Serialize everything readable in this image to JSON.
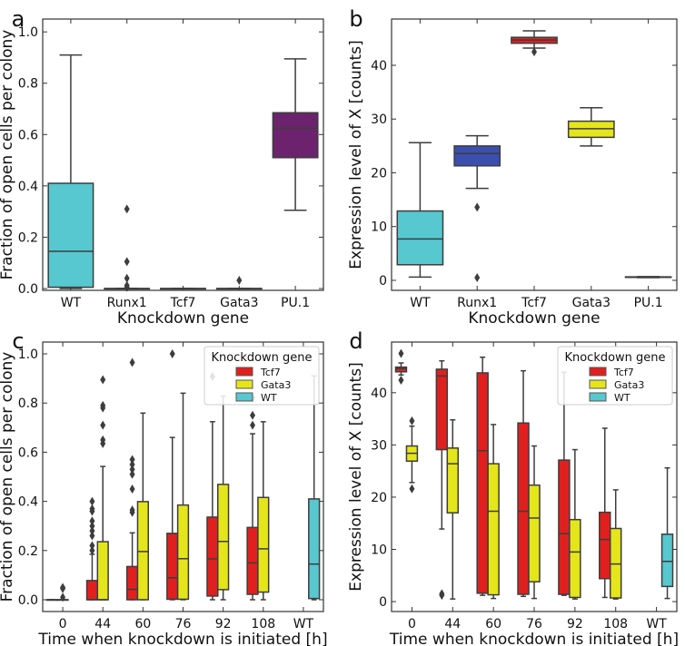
{
  "colors": {
    "line": "#3d3d3d",
    "WT": "#57c7d0",
    "Runx1": "#3a4fb0",
    "Tcf7": "#e0201f",
    "Gata3": "#e5e51c",
    "PU.1": "#6c226c"
  },
  "chart_data": [
    {
      "panel": "a",
      "type": "box",
      "xlabel": "Knockdown gene",
      "ylabel": "Fraction of open cells per colony",
      "categories": [
        "WT",
        "Runx1",
        "Tcf7",
        "Gata3",
        "PU.1"
      ],
      "ylim": [
        -0.007,
        1.05
      ],
      "yticks": [
        0.0,
        0.2,
        0.4,
        0.6,
        0.8,
        1.0
      ],
      "ytick_labels": [
        "0.0",
        "0.2",
        "0.4",
        "0.6",
        "0.8",
        "1.0"
      ],
      "hue_levels": [],
      "boxes": [
        {
          "category": "WT",
          "group": "WT",
          "whislo": 0.0,
          "q1": 0.005,
          "med": 0.145,
          "q3": 0.41,
          "whishi": 0.91,
          "fliers": []
        },
        {
          "category": "Runx1",
          "group": "Runx1",
          "whislo": 0,
          "q1": 0,
          "med": 0,
          "q3": 0,
          "whishi": 0,
          "fliers": [
            0.31,
            0.105,
            0.04,
            0.012,
            0.005
          ]
        },
        {
          "category": "Tcf7",
          "group": "Tcf7",
          "whislo": 0,
          "q1": 0,
          "med": 0,
          "q3": 0,
          "whishi": 0,
          "fliers": []
        },
        {
          "category": "Gata3",
          "group": "Gata3",
          "whislo": 0,
          "q1": 0,
          "med": 0,
          "q3": 0,
          "whishi": 0,
          "fliers": [
            0.032
          ]
        },
        {
          "category": "PU.1",
          "group": "PU.1",
          "whislo": 0.305,
          "q1": 0.51,
          "med": 0.625,
          "q3": 0.685,
          "whishi": 0.895,
          "fliers": []
        }
      ]
    },
    {
      "panel": "b",
      "type": "box",
      "xlabel": "Knockdown gene",
      "ylabel": "Expression level of X [counts]",
      "categories": [
        "WT",
        "Runx1",
        "Tcf7",
        "Gata3",
        "PU.1"
      ],
      "ylim": [
        -1.86,
        48.6
      ],
      "yticks": [
        0,
        10,
        20,
        30,
        40
      ],
      "ytick_labels": [
        "0",
        "10",
        "20",
        "30",
        "40"
      ],
      "hue_levels": [],
      "boxes": [
        {
          "category": "WT",
          "group": "WT",
          "whislo": 0.6,
          "q1": 2.9,
          "med": 7.7,
          "q3": 12.9,
          "whishi": 25.6,
          "fliers": []
        },
        {
          "category": "Runx1",
          "group": "Runx1",
          "whislo": 17.1,
          "q1": 21.3,
          "med": 23.6,
          "q3": 25.0,
          "whishi": 26.9,
          "fliers": [
            13.6,
            0.5
          ]
        },
        {
          "category": "Tcf7",
          "group": "Tcf7",
          "whislo": 43.2,
          "q1": 44.1,
          "med": 44.7,
          "q3": 45.2,
          "whishi": 46.4,
          "fliers": [
            42.5
          ]
        },
        {
          "category": "Gata3",
          "group": "Gata3",
          "whislo": 25.0,
          "q1": 26.6,
          "med": 28.2,
          "q3": 29.6,
          "whishi": 32.1,
          "fliers": []
        },
        {
          "category": "PU.1",
          "group": "PU.1",
          "whislo": 0.5,
          "q1": 0.55,
          "med": 0.6,
          "q3": 0.65,
          "whishi": 0.7,
          "fliers": []
        }
      ]
    },
    {
      "panel": "c",
      "type": "box",
      "xlabel": "Time when knockdown is initiated [h]",
      "ylabel": "Fraction of open cells per colony",
      "categories": [
        "0",
        "44",
        "60",
        "76",
        "92",
        "108",
        "WT"
      ],
      "ylim": [
        -0.048,
        1.048
      ],
      "yticks": [
        0.0,
        0.2,
        0.4,
        0.6,
        0.8,
        1.0
      ],
      "ytick_labels": [
        "0.0",
        "0.2",
        "0.4",
        "0.6",
        "0.8",
        "1.0"
      ],
      "hue_levels": [
        "Tcf7",
        "Gata3",
        "WT"
      ],
      "legend": {
        "title": "Knockdown gene",
        "entries": [
          "Tcf7",
          "Gata3",
          "WT"
        ],
        "placement": "top-right"
      },
      "boxes": [
        {
          "category": "0",
          "group": "Tcf7",
          "whislo": 0,
          "q1": 0,
          "med": 0,
          "q3": 0,
          "whishi": 0,
          "fliers": []
        },
        {
          "category": "0",
          "group": "Gata3",
          "whislo": 0,
          "q1": 0,
          "med": 0,
          "q3": 0,
          "whishi": 0,
          "fliers": [
            0.05,
            0.045,
            0.01
          ]
        },
        {
          "category": "44",
          "group": "Tcf7",
          "whislo": 0,
          "q1": 0,
          "med": 0,
          "q3": 0.078,
          "whishi": 0.185,
          "fliers": [
            0.2,
            0.22,
            0.26,
            0.28,
            0.3,
            0.32,
            0.36,
            0.37,
            0.4
          ]
        },
        {
          "category": "44",
          "group": "Gata3",
          "whislo": 0,
          "q1": 0,
          "med": 0,
          "q3": 0.236,
          "whishi": 0.542,
          "fliers": [
            0.635,
            0.65,
            0.71,
            0.78,
            0.79,
            0.895
          ]
        },
        {
          "category": "60",
          "group": "Tcf7",
          "whislo": 0,
          "q1": 0,
          "med": 0.042,
          "q3": 0.135,
          "whishi": 0.272,
          "fliers": [
            0.355,
            0.365,
            0.45,
            0.51,
            0.53,
            0.55,
            0.57,
            0.965
          ]
        },
        {
          "category": "60",
          "group": "Gata3",
          "whislo": 0,
          "q1": 0,
          "med": 0.196,
          "q3": 0.399,
          "whishi": 0.759,
          "fliers": []
        },
        {
          "category": "76",
          "group": "Tcf7",
          "whislo": 0,
          "q1": 0.002,
          "med": 0.089,
          "q3": 0.27,
          "whishi": 0.66,
          "fliers": [
            1.0
          ]
        },
        {
          "category": "76",
          "group": "Gata3",
          "whislo": 0,
          "q1": 0.002,
          "med": 0.167,
          "q3": 0.385,
          "whishi": 0.84,
          "fliers": []
        },
        {
          "category": "92",
          "group": "Tcf7",
          "whislo": 0,
          "q1": 0.015,
          "med": 0.166,
          "q3": 0.336,
          "whishi": 0.724,
          "fliers": [
            0.908
          ]
        },
        {
          "category": "92",
          "group": "Gata3",
          "whislo": 0,
          "q1": 0.041,
          "med": 0.237,
          "q3": 0.469,
          "whishi": 0.828,
          "fliers": []
        },
        {
          "category": "108",
          "group": "Tcf7",
          "whislo": 0,
          "q1": 0.022,
          "med": 0.15,
          "q3": 0.294,
          "whishi": 0.675,
          "fliers": [
            0.71,
            0.75,
            0.82
          ]
        },
        {
          "category": "108",
          "group": "Gata3",
          "whislo": 0,
          "q1": 0.031,
          "med": 0.207,
          "q3": 0.416,
          "whishi": 0.724,
          "fliers": []
        },
        {
          "category": "WT",
          "group": "WT",
          "whislo": 0,
          "q1": 0.005,
          "med": 0.145,
          "q3": 0.41,
          "whishi": 0.91,
          "fliers": []
        }
      ]
    },
    {
      "panel": "d",
      "type": "box",
      "xlabel": "Time when knockdown is initiated [h]",
      "ylabel": "Expression level of X [counts]",
      "categories": [
        "0",
        "44",
        "60",
        "76",
        "92",
        "108",
        "WT"
      ],
      "ylim": [
        -1.9,
        49.7
      ],
      "yticks": [
        0,
        10,
        20,
        30,
        40
      ],
      "ytick_labels": [
        "0",
        "10",
        "20",
        "30",
        "40"
      ],
      "hue_levels": [
        "Tcf7",
        "Gata3",
        "WT"
      ],
      "legend": {
        "title": "Knockdown gene",
        "entries": [
          "Tcf7",
          "Gata3",
          "WT"
        ],
        "placement": "top-right"
      },
      "boxes": [
        {
          "category": "0",
          "group": "Tcf7",
          "whislo": 43.4,
          "q1": 44.0,
          "med": 44.6,
          "q3": 44.9,
          "whishi": 45.7,
          "fliers": [
            47.5,
            42.4
          ]
        },
        {
          "category": "0",
          "group": "Gata3",
          "whislo": 22.8,
          "q1": 26.9,
          "med": 28.4,
          "q3": 29.8,
          "whishi": 33.6,
          "fliers": [
            34.6,
            21.6
          ]
        },
        {
          "category": "44",
          "group": "Tcf7",
          "whislo": 13.9,
          "q1": 29.1,
          "med": 43.2,
          "q3": 44.5,
          "whishi": 46.1,
          "fliers": [
            1.5,
            1.2
          ]
        },
        {
          "category": "44",
          "group": "Gata3",
          "whislo": 0.5,
          "q1": 17.0,
          "med": 26.4,
          "q3": 29.4,
          "whishi": 34.8,
          "fliers": []
        },
        {
          "category": "60",
          "group": "Tcf7",
          "whislo": 1.2,
          "q1": 1.6,
          "med": 28.9,
          "q3": 43.8,
          "whishi": 46.8,
          "fliers": []
        },
        {
          "category": "60",
          "group": "Gata3",
          "whislo": 0.6,
          "q1": 1.3,
          "med": 17.3,
          "q3": 26.4,
          "whishi": 33.9,
          "fliers": []
        },
        {
          "category": "76",
          "group": "Tcf7",
          "whislo": 1.0,
          "q1": 1.4,
          "med": 17.3,
          "q3": 34.2,
          "whishi": 44.2,
          "fliers": []
        },
        {
          "category": "76",
          "group": "Gata3",
          "whislo": 0.6,
          "q1": 3.8,
          "med": 16.0,
          "q3": 22.3,
          "whishi": 29.8,
          "fliers": []
        },
        {
          "category": "92",
          "group": "Tcf7",
          "whislo": 1.2,
          "q1": 1.4,
          "med": 13.0,
          "q3": 27.1,
          "whishi": 43.9,
          "fliers": []
        },
        {
          "category": "92",
          "group": "Gata3",
          "whislo": 0.5,
          "q1": 0.8,
          "med": 9.5,
          "q3": 15.7,
          "whishi": 29.1,
          "fliers": []
        },
        {
          "category": "108",
          "group": "Tcf7",
          "whislo": 0.8,
          "q1": 4.4,
          "med": 11.9,
          "q3": 17.1,
          "whishi": 33.2,
          "fliers": []
        },
        {
          "category": "108",
          "group": "Gata3",
          "whislo": 0.5,
          "q1": 0.7,
          "med": 7.2,
          "q3": 14.0,
          "whishi": 21.4,
          "fliers": []
        },
        {
          "category": "WT",
          "group": "WT",
          "whislo": 0.6,
          "q1": 2.9,
          "med": 7.7,
          "q3": 12.9,
          "whishi": 25.6,
          "fliers": []
        }
      ]
    }
  ]
}
